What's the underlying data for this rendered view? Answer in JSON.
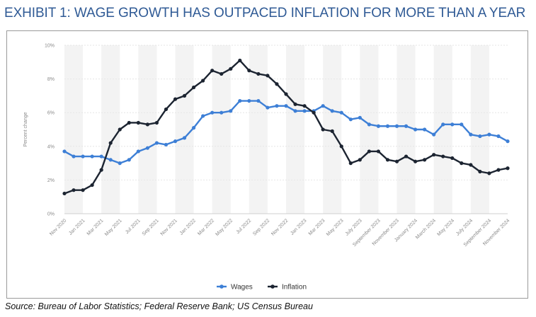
{
  "header": {
    "title": "EXHIBIT 1: WAGE GROWTH HAS OUTPACED INFLATION FOR MORE THAN A YEAR"
  },
  "footer": {
    "source": "Source: Bureau of Labor Statistics; Federal Reserve Bank; US Census Bureau"
  },
  "colors": {
    "wages": "#3d7fd6",
    "inflation": "#1c2431",
    "title": "#2f5a95"
  },
  "chart_data": {
    "type": "line",
    "title": "",
    "ylabel": "Percent change",
    "xlabel": "",
    "ylim": [
      0,
      10
    ],
    "yticks": [
      0,
      2,
      4,
      6,
      8,
      10
    ],
    "yticklabels": [
      "0%",
      "2%",
      "4%",
      "6%",
      "8%",
      "10%"
    ],
    "grid": "alternating vertical bands",
    "legend_position": "bottom-center",
    "x": [
      "Nov 2020",
      "Dec 2020",
      "Jan 2021",
      "Feb 2021",
      "Mar 2021",
      "Apr 2021",
      "May 2021",
      "Jun 2021",
      "Jul 2021",
      "Aug 2021",
      "Sep 2021",
      "Oct 2021",
      "Nov 2021",
      "Dec 2021",
      "Jan 2022",
      "Feb 2022",
      "Mar 2022",
      "Apr 2022",
      "May 2022",
      "Jun 2022",
      "Jul 2022",
      "Aug 2022",
      "Sep 2022",
      "Oct 2022",
      "Nov 2022",
      "Dec 2022",
      "Jan 2023",
      "Feb 2023",
      "Mar 2023",
      "Apr 2023",
      "May 2023",
      "Jun 2023",
      "Jul 2023",
      "Aug 2023",
      "Sep 2023",
      "Oct 2023",
      "Nov 2023",
      "Dec 2023",
      "Jan 2024",
      "Feb 2024",
      "Mar 2024",
      "Apr 2024",
      "May 2024",
      "Jun 2024",
      "Jul 2024",
      "Aug 2024",
      "Sep 2024",
      "Oct 2024",
      "Nov 2024"
    ],
    "xticklabels": [
      "Nov 2020",
      "Jan 2021",
      "Mar 2021",
      "May 2021",
      "Jul 2021",
      "Sep 2021",
      "Nov 2021",
      "Jan 2022",
      "Mar 2022",
      "May 2022",
      "Jul 2022",
      "Sep 2022",
      "Nov 2022",
      "Jan 2023",
      "Mar 2023",
      "May 2023",
      "July 2023",
      "September 2023",
      "November 2023",
      "January 2024",
      "March 2024",
      "May 2024",
      "July 2024",
      "September 2024",
      "November 2024"
    ],
    "series": [
      {
        "name": "Wages",
        "values": [
          3.7,
          3.4,
          3.4,
          3.4,
          3.4,
          3.2,
          3.0,
          3.2,
          3.7,
          3.9,
          4.2,
          4.1,
          4.3,
          4.5,
          5.1,
          5.8,
          6.0,
          6.0,
          6.1,
          6.7,
          6.7,
          6.7,
          6.3,
          6.4,
          6.4,
          6.1,
          6.1,
          6.1,
          6.4,
          6.1,
          6.0,
          5.6,
          5.7,
          5.3,
          5.2,
          5.2,
          5.2,
          5.2,
          5.0,
          5.0,
          4.7,
          5.3,
          5.3,
          5.3,
          4.7,
          4.6,
          4.7,
          4.6,
          4.3
        ]
      },
      {
        "name": "Inflation",
        "values": [
          1.2,
          1.4,
          1.4,
          1.7,
          2.6,
          4.2,
          5.0,
          5.4,
          5.4,
          5.3,
          5.4,
          6.2,
          6.8,
          7.0,
          7.5,
          7.9,
          8.5,
          8.3,
          8.6,
          9.1,
          8.5,
          8.3,
          8.2,
          7.7,
          7.1,
          6.5,
          6.4,
          6.0,
          5.0,
          4.9,
          4.0,
          3.0,
          3.2,
          3.7,
          3.7,
          3.2,
          3.1,
          3.4,
          3.1,
          3.2,
          3.5,
          3.4,
          3.3,
          3.0,
          2.9,
          2.5,
          2.4,
          2.6,
          2.7
        ]
      }
    ]
  }
}
